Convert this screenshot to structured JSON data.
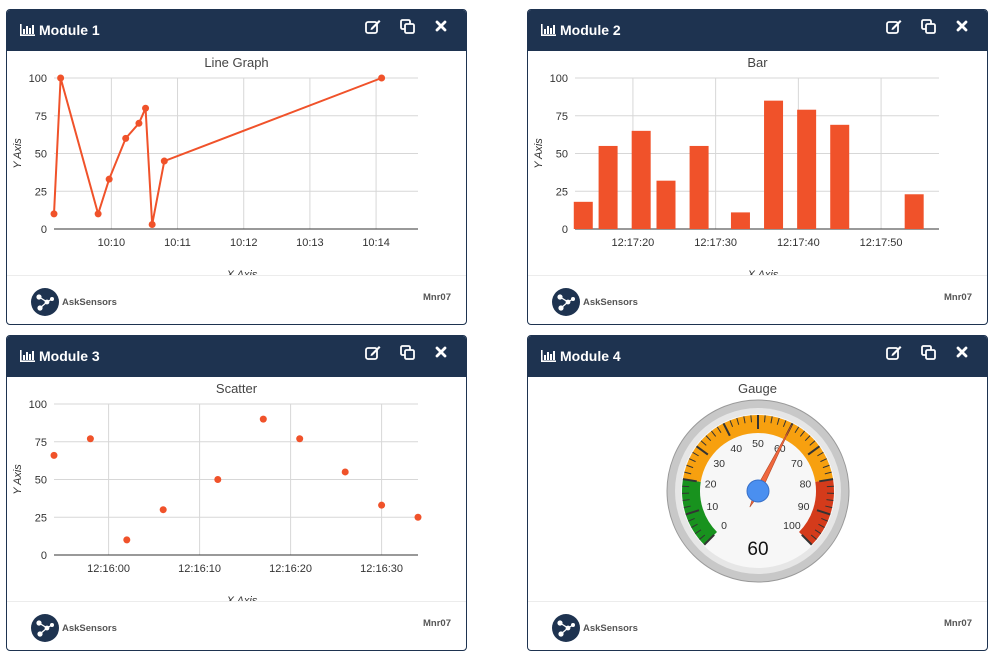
{
  "colors": {
    "header": "#1e3350",
    "series": "#f0522a",
    "grid": "#d7d7d7"
  },
  "icons": {
    "title": "bar-chart-icon",
    "tools": [
      "edit-icon",
      "duplicate-icon",
      "close-icon"
    ],
    "logo": "asksensors-logo-icon"
  },
  "footer": {
    "brand": "AskSensors",
    "user": "Mnr07"
  },
  "modules": [
    {
      "title": "Module 1",
      "chart_data": {
        "type": "line",
        "title": "Line Graph",
        "xlabel": "X Axis",
        "ylabel": "Y Axis",
        "ylim": [
          0,
          100
        ],
        "yticks": [
          0,
          25,
          50,
          75,
          100
        ],
        "xticks": [
          "10:10",
          "10:11",
          "10:12",
          "10:13",
          "10:14"
        ],
        "xlim": [
          "10:09:08",
          "10:14:38"
        ],
        "grid": true,
        "series": [
          {
            "x": [
              "10:09:08",
              "10:09:14",
              "10:09:48",
              "10:09:58",
              "10:10:13",
              "10:10:25",
              "10:10:31",
              "10:10:37",
              "10:10:48",
              "10:14:05"
            ],
            "values": [
              10,
              100,
              10,
              33,
              60,
              70,
              80,
              3,
              45,
              100
            ]
          }
        ]
      }
    },
    {
      "title": "Module 2",
      "chart_data": {
        "type": "bar",
        "title": "Bar",
        "xlabel": "X Axis",
        "ylabel": "Y Axis",
        "ylim": [
          0,
          100
        ],
        "yticks": [
          0,
          25,
          50,
          75,
          100
        ],
        "xticks": [
          "12:17:20",
          "12:17:30",
          "12:17:40",
          "12:17:50"
        ],
        "xlim": [
          "12:17:13",
          "12:17:57"
        ],
        "grid": true,
        "series": [
          {
            "x": [
              "12:17:14",
              "12:17:17",
              "12:17:21",
              "12:17:24",
              "12:17:28",
              "12:17:33",
              "12:17:37",
              "12:17:41",
              "12:17:45",
              "12:17:54"
            ],
            "values": [
              18,
              55,
              65,
              32,
              55,
              11,
              85,
              79,
              69,
              23
            ]
          }
        ]
      }
    },
    {
      "title": "Module 3",
      "chart_data": {
        "type": "scatter",
        "title": "Scatter",
        "xlabel": "X Axis",
        "ylabel": "Y Axis",
        "ylim": [
          0,
          100
        ],
        "yticks": [
          0,
          25,
          50,
          75,
          100
        ],
        "xticks": [
          "12:16:00",
          "12:16:10",
          "12:16:20",
          "12:16:30"
        ],
        "xlim": [
          "12:15:54",
          "12:16:34"
        ],
        "grid": true,
        "series": [
          {
            "x": [
              "12:15:54",
              "12:15:58",
              "12:16:02",
              "12:16:06",
              "12:16:12",
              "12:16:17",
              "12:16:21",
              "12:16:26",
              "12:16:30",
              "12:16:34"
            ],
            "values": [
              66,
              77,
              10,
              30,
              50,
              90,
              77,
              55,
              33,
              25
            ]
          }
        ]
      }
    },
    {
      "title": "Module 4",
      "gauge": {
        "title": "Gauge",
        "min": 0,
        "max": 100,
        "value": 60,
        "labels": [
          "0",
          "10",
          "20",
          "30",
          "40",
          "50",
          "60",
          "70",
          "80",
          "90",
          "100"
        ],
        "bands": [
          {
            "from": 0,
            "to": 20,
            "color": "#18921e"
          },
          {
            "from": 20,
            "to": 80,
            "color": "#f7a00f"
          },
          {
            "from": 80,
            "to": 100,
            "color": "#d43b1b"
          }
        ],
        "needle_color": "#f0673d",
        "hub_color": "#4a8ff0"
      }
    }
  ]
}
